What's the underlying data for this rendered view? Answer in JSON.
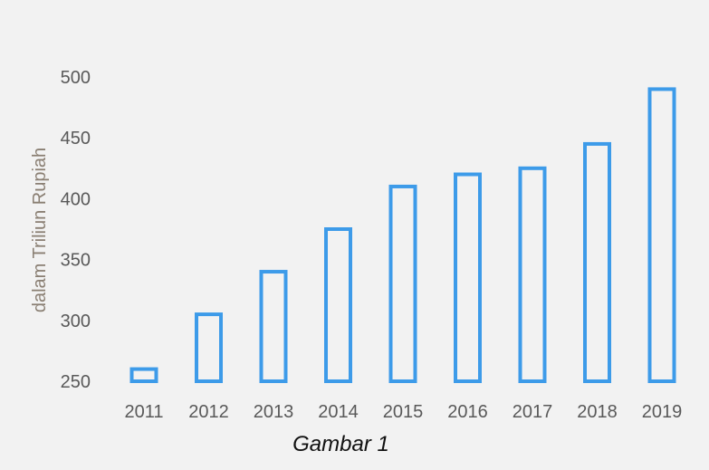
{
  "chart_data": {
    "type": "bar",
    "categories": [
      "2011",
      "2012",
      "2013",
      "2014",
      "2015",
      "2016",
      "2017",
      "2018",
      "2019"
    ],
    "values": [
      260,
      305,
      340,
      375,
      410,
      420,
      425,
      445,
      490
    ],
    "title": "",
    "xlabel": "",
    "ylabel": "dalam Triliun Rupiah",
    "ylim": [
      250,
      500
    ],
    "yticks": [
      250,
      300,
      350,
      400,
      450,
      500
    ],
    "grid": false,
    "bar_style": "outline",
    "bar_color": "#3d9be9"
  },
  "caption": "Gambar 1"
}
